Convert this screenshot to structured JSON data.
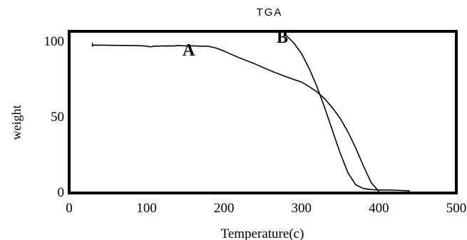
{
  "chart_data": {
    "type": "line",
    "title": "TGA",
    "xlabel": "Temperature(c)",
    "ylabel": "weight",
    "xlim": [
      0,
      500
    ],
    "ylim": [
      0,
      100
    ],
    "xticks": [
      "0",
      "100",
      "200",
      "300",
      "400",
      "500"
    ],
    "yticks": [
      "0",
      "50",
      "100"
    ],
    "grid": false,
    "legend": "none",
    "line_color": "#000000",
    "series": [
      {
        "name": "A",
        "x": [
          30,
          30,
          32,
          60,
          90,
          100,
          105,
          110,
          120,
          130,
          135,
          140,
          150,
          160,
          170,
          180,
          190,
          200,
          220,
          240,
          260,
          280,
          300,
          310,
          320,
          330,
          340,
          350,
          360,
          370,
          380,
          390,
          400
        ],
        "y": [
          99,
          97,
          97.5,
          97.3,
          97.1,
          96.8,
          96.3,
          96.8,
          96.9,
          97,
          96.9,
          97.2,
          97,
          97,
          96.8,
          96.7,
          95.5,
          93.5,
          89,
          85,
          80.5,
          76.5,
          73,
          70,
          66.5,
          62,
          56,
          49,
          40,
          29.5,
          17.5,
          6.5,
          0.5
        ]
      },
      {
        "name": "B",
        "x": [
          280,
          290,
          300,
          310,
          320,
          330,
          340,
          350,
          360,
          370,
          380,
          390,
          400,
          410,
          420,
          430,
          440
        ],
        "y": [
          104,
          99,
          92,
          82,
          70,
          56,
          41,
          26,
          13,
          5,
          2.5,
          1.8,
          1.5,
          1.5,
          1.4,
          1.2,
          1
        ]
      }
    ]
  }
}
